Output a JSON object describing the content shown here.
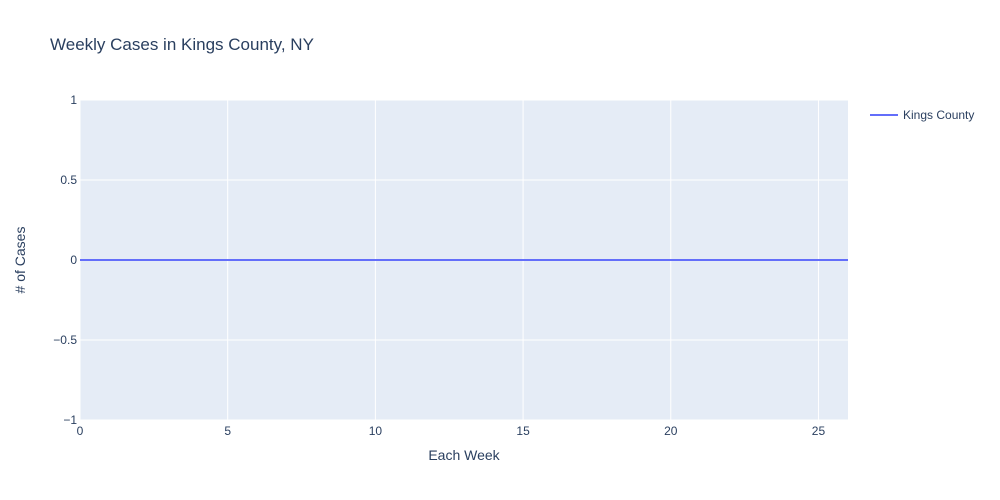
{
  "colors": {
    "plot_background": "#e5ecf6",
    "grid": "#ffffff",
    "text": "#2a3f5f",
    "series": "#636efa"
  },
  "chart_data": {
    "type": "line",
    "title": "Weekly Cases in Kings County, NY",
    "xlabel": "Each Week",
    "ylabel": "# of Cases",
    "xlim": [
      0,
      26
    ],
    "ylim": [
      -1,
      1
    ],
    "xticks": [
      0,
      5,
      10,
      15,
      20,
      25
    ],
    "xtick_labels": [
      "0",
      "5",
      "10",
      "15",
      "20",
      "25"
    ],
    "yticks": [
      -1,
      -0.5,
      0,
      0.5,
      1
    ],
    "ytick_labels": [
      "−1",
      "−0.5",
      "0",
      "0.5",
      "1"
    ],
    "grid": true,
    "legend_position": "top-right",
    "series": [
      {
        "name": "Kings County",
        "x": [
          0,
          1,
          2,
          3,
          4,
          5,
          6,
          7,
          8,
          9,
          10,
          11,
          12,
          13,
          14,
          15,
          16,
          17,
          18,
          19,
          20,
          21,
          22,
          23,
          24,
          25,
          26
        ],
        "y": [
          0,
          0,
          0,
          0,
          0,
          0,
          0,
          0,
          0,
          0,
          0,
          0,
          0,
          0,
          0,
          0,
          0,
          0,
          0,
          0,
          0,
          0,
          0,
          0,
          0,
          0,
          0
        ]
      }
    ]
  }
}
